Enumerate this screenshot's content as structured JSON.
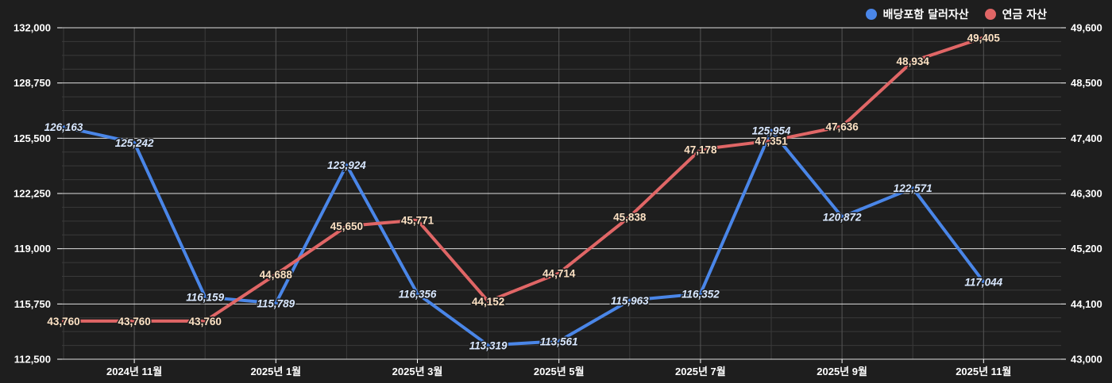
{
  "chart_data": {
    "type": "line",
    "title": "",
    "categories": [
      "",
      "2024년 11월",
      "",
      "2025년 1월",
      "",
      "2025년 3월",
      "",
      "2025년 5월",
      "",
      "2025년 7월",
      "",
      "2025년 9월",
      "",
      "2025년 11월"
    ],
    "x_tick_labels": [
      "2024년 11월",
      "2025년 1월",
      "2025년 3월",
      "2025년 5월",
      "2025년 7월",
      "2025년 9월",
      "2025년 11월"
    ],
    "series": [
      {
        "name": "배당포함 달러자산",
        "axis": "left",
        "color": "#4a86e8",
        "values": [
          126163,
          125242,
          116159,
          115789,
          123924,
          116356,
          113319,
          113561,
          115963,
          116352,
          125954,
          120872,
          122571,
          117044
        ],
        "labels": [
          "126,163",
          "125,242",
          "116,159",
          "115,789",
          "123,924",
          "116,356",
          "113,319",
          "113,561",
          "115,963",
          "116,352",
          "125,954",
          "120,872",
          "122,571",
          "117,044"
        ]
      },
      {
        "name": "연금 자산",
        "axis": "right",
        "color": "#e06666",
        "values": [
          43760,
          43760,
          43760,
          44688,
          45650,
          45771,
          44152,
          44714,
          45838,
          47178,
          47351,
          47636,
          48934,
          49405
        ],
        "labels": [
          "43,760",
          "43,760",
          "43,760",
          "44,688",
          "45,650",
          "45,771",
          "44,152",
          "44,714",
          "45,838",
          "47,178",
          "47,351",
          "47,636",
          "48,934",
          "49,405"
        ]
      }
    ],
    "y_left": {
      "min": 112500,
      "max": 132000,
      "ticks": [
        112500,
        115750,
        119000,
        122250,
        125500,
        128750,
        132000
      ],
      "tick_labels": [
        "112,500",
        "115,750",
        "119,000",
        "122,250",
        "125,500",
        "128,750",
        "132,000"
      ]
    },
    "y_right": {
      "min": 43000,
      "max": 49600,
      "ticks": [
        43000,
        44100,
        45200,
        46300,
        47400,
        48500,
        49600
      ],
      "tick_labels": [
        "43,000",
        "44,100",
        "45,200",
        "46,300",
        "47,400",
        "48,500",
        "49,600"
      ]
    },
    "grid": true,
    "legend_position": "top-right"
  },
  "colors": {
    "background": "#1e1e1e",
    "grid_major": "#ffffff",
    "grid_minor": "#3a3a3a",
    "axis_text": "#ffffff",
    "blue_label": "#d9e8ff",
    "red_label": "#fde2c4"
  }
}
